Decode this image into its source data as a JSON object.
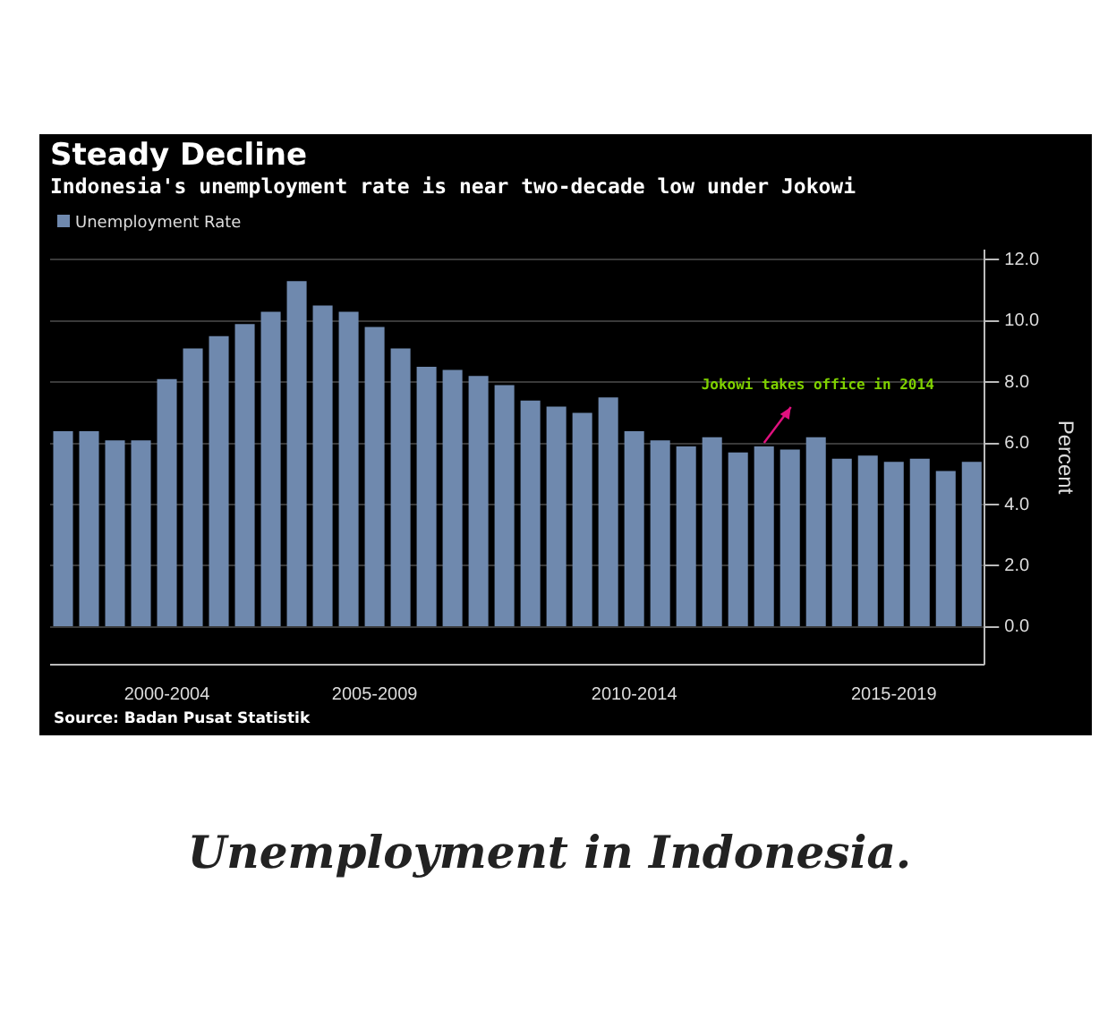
{
  "chart_data": {
    "type": "bar",
    "title": "Steady Decline",
    "subtitle": "Indonesia's unemployment rate is near two-decade low under Jokowi",
    "categories": [
      null,
      null,
      null,
      null,
      "2000-2004",
      null,
      null,
      null,
      null,
      null,
      null,
      null,
      "2005-2009",
      null,
      null,
      null,
      null,
      null,
      null,
      null,
      null,
      null,
      "2010-2014",
      null,
      null,
      null,
      null,
      null,
      null,
      null,
      null,
      null,
      "2015-2019",
      null,
      null,
      null
    ],
    "series": [
      {
        "name": "Unemployment Rate",
        "color": "#6f89ae",
        "values": [
          6.4,
          6.4,
          6.1,
          6.1,
          8.1,
          9.1,
          9.5,
          9.9,
          10.3,
          11.3,
          10.5,
          10.3,
          9.8,
          9.1,
          8.5,
          8.4,
          8.2,
          7.9,
          7.4,
          7.2,
          7.0,
          7.5,
          6.4,
          6.1,
          5.9,
          6.2,
          5.7,
          5.9,
          5.8,
          6.2,
          5.5,
          5.6,
          5.4,
          5.5,
          5.1,
          5.4
        ]
      }
    ],
    "ylabel": "Percent",
    "ylim": [
      -1.2,
      12.3
    ],
    "yticks": [
      {
        "value": 0,
        "label": "0.0"
      },
      {
        "value": 2,
        "label": "2.0"
      },
      {
        "value": 4,
        "label": "4.0"
      },
      {
        "value": 6,
        "label": "6.0"
      },
      {
        "value": 8,
        "label": "8.0"
      },
      {
        "value": 10,
        "label": "10.0"
      },
      {
        "value": 12,
        "label": "12.0"
      }
    ],
    "grid": "y",
    "legend": "top left",
    "annotations": [
      "Jokowi takes office in 2014",
      "Source: Badan Pusat Statistik",
      "Unemployment in Indonesia."
    ]
  }
}
